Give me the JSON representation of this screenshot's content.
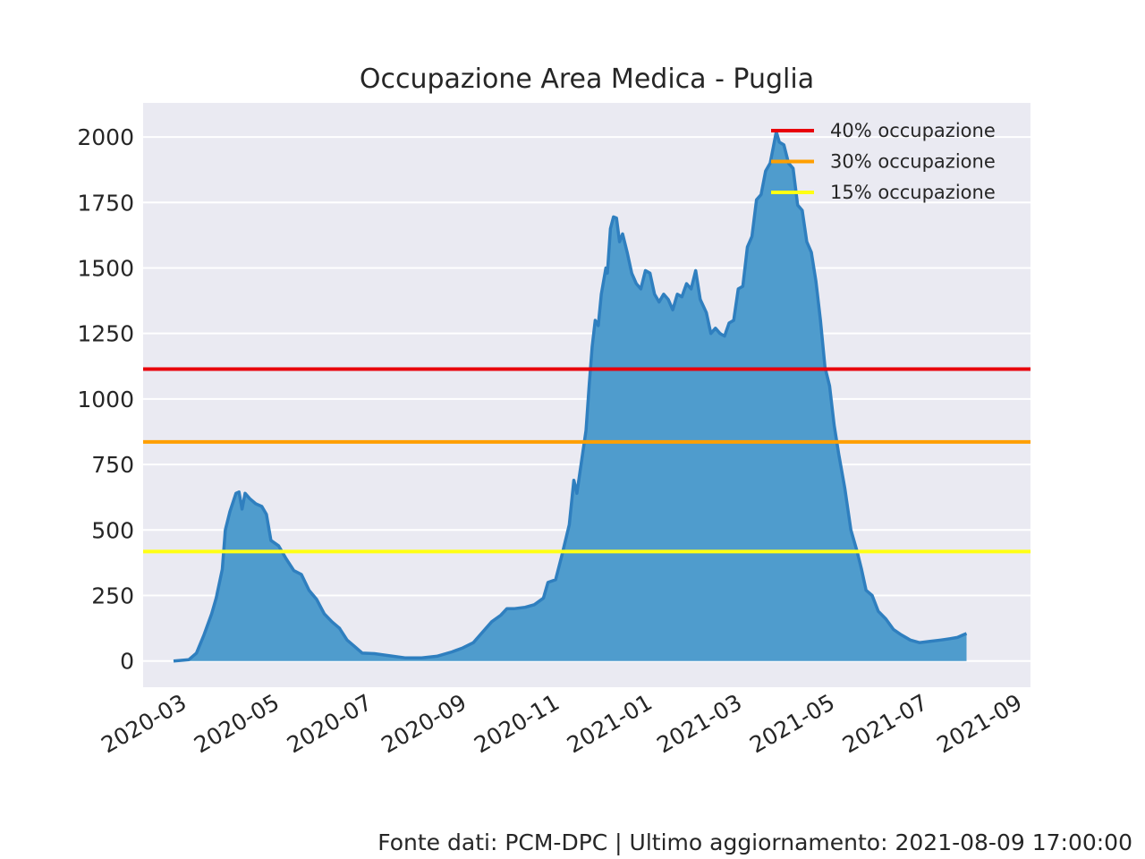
{
  "chart_data": {
    "type": "area",
    "title": "Occupazione Area Medica - Puglia",
    "xlabel": "",
    "ylabel": "",
    "x_range": [
      "2020-02-04",
      "2021-09-09"
    ],
    "ylim": [
      -100,
      2130
    ],
    "yticks": [
      0,
      250,
      500,
      750,
      1000,
      1250,
      1500,
      1750,
      2000
    ],
    "xticks": [
      "2020-03",
      "2020-05",
      "2020-07",
      "2020-09",
      "2020-11",
      "2021-01",
      "2021-03",
      "2021-05",
      "2021-07",
      "2021-09"
    ],
    "grid": true,
    "legend_position": "top-right",
    "thresholds": [
      {
        "name": "40% occupazione",
        "value": 1114,
        "color": "#e8000b"
      },
      {
        "name": "30% occupazione",
        "value": 836,
        "color": "#ff9f00"
      },
      {
        "name": "15% occupazione",
        "value": 418,
        "color": "#ffff14"
      }
    ],
    "series": [
      {
        "color": "#2f7fbf",
        "fill": "#4f9ccd",
        "points": [
          [
            "2020-02-24",
            0
          ],
          [
            "2020-03-05",
            5
          ],
          [
            "2020-03-10",
            30
          ],
          [
            "2020-03-15",
            100
          ],
          [
            "2020-03-20",
            180
          ],
          [
            "2020-03-23",
            240
          ],
          [
            "2020-03-27",
            350
          ],
          [
            "2020-03-29",
            500
          ],
          [
            "2020-04-01",
            570
          ],
          [
            "2020-04-05",
            640
          ],
          [
            "2020-04-07",
            645
          ],
          [
            "2020-04-09",
            580
          ],
          [
            "2020-04-11",
            640
          ],
          [
            "2020-04-14",
            620
          ],
          [
            "2020-04-18",
            600
          ],
          [
            "2020-04-22",
            590
          ],
          [
            "2020-04-25",
            560
          ],
          [
            "2020-04-28",
            460
          ],
          [
            "2020-05-03",
            440
          ],
          [
            "2020-05-08",
            390
          ],
          [
            "2020-05-13",
            345
          ],
          [
            "2020-05-18",
            330
          ],
          [
            "2020-05-23",
            270
          ],
          [
            "2020-05-28",
            235
          ],
          [
            "2020-06-02",
            180
          ],
          [
            "2020-06-07",
            150
          ],
          [
            "2020-06-12",
            125
          ],
          [
            "2020-06-17",
            80
          ],
          [
            "2020-06-22",
            55
          ],
          [
            "2020-06-27",
            30
          ],
          [
            "2020-07-05",
            28
          ],
          [
            "2020-07-15",
            20
          ],
          [
            "2020-07-25",
            12
          ],
          [
            "2020-08-05",
            12
          ],
          [
            "2020-08-15",
            18
          ],
          [
            "2020-08-25",
            35
          ],
          [
            "2020-09-01",
            50
          ],
          [
            "2020-09-08",
            70
          ],
          [
            "2020-09-14",
            110
          ],
          [
            "2020-09-20",
            150
          ],
          [
            "2020-09-26",
            175
          ],
          [
            "2020-09-30",
            200
          ],
          [
            "2020-10-05",
            200
          ],
          [
            "2020-10-12",
            205
          ],
          [
            "2020-10-18",
            215
          ],
          [
            "2020-10-24",
            240
          ],
          [
            "2020-10-27",
            300
          ],
          [
            "2020-11-01",
            310
          ],
          [
            "2020-11-05",
            400
          ],
          [
            "2020-11-10",
            520
          ],
          [
            "2020-11-13",
            690
          ],
          [
            "2020-11-15",
            640
          ],
          [
            "2020-11-18",
            760
          ],
          [
            "2020-11-21",
            880
          ],
          [
            "2020-11-23",
            1050
          ],
          [
            "2020-11-25",
            1200
          ],
          [
            "2020-11-27",
            1300
          ],
          [
            "2020-11-29",
            1280
          ],
          [
            "2020-12-01",
            1400
          ],
          [
            "2020-12-04",
            1500
          ],
          [
            "2020-12-05",
            1480
          ],
          [
            "2020-12-07",
            1650
          ],
          [
            "2020-12-09",
            1695
          ],
          [
            "2020-12-11",
            1690
          ],
          [
            "2020-12-13",
            1600
          ],
          [
            "2020-12-15",
            1630
          ],
          [
            "2020-12-18",
            1560
          ],
          [
            "2020-12-21",
            1480
          ],
          [
            "2020-12-24",
            1440
          ],
          [
            "2020-12-27",
            1420
          ],
          [
            "2020-12-30",
            1490
          ],
          [
            "2021-01-02",
            1480
          ],
          [
            "2021-01-05",
            1400
          ],
          [
            "2021-01-08",
            1370
          ],
          [
            "2021-01-11",
            1400
          ],
          [
            "2021-01-14",
            1380
          ],
          [
            "2021-01-17",
            1340
          ],
          [
            "2021-01-20",
            1400
          ],
          [
            "2021-01-23",
            1390
          ],
          [
            "2021-01-26",
            1440
          ],
          [
            "2021-01-29",
            1420
          ],
          [
            "2021-02-01",
            1490
          ],
          [
            "2021-02-04",
            1380
          ],
          [
            "2021-02-08",
            1330
          ],
          [
            "2021-02-11",
            1250
          ],
          [
            "2021-02-14",
            1270
          ],
          [
            "2021-02-17",
            1250
          ],
          [
            "2021-02-20",
            1240
          ],
          [
            "2021-02-23",
            1290
          ],
          [
            "2021-02-26",
            1300
          ],
          [
            "2021-03-01",
            1420
          ],
          [
            "2021-03-04",
            1430
          ],
          [
            "2021-03-07",
            1580
          ],
          [
            "2021-03-10",
            1620
          ],
          [
            "2021-03-13",
            1760
          ],
          [
            "2021-03-16",
            1780
          ],
          [
            "2021-03-19",
            1870
          ],
          [
            "2021-03-22",
            1900
          ],
          [
            "2021-03-24",
            1960
          ],
          [
            "2021-03-26",
            2020
          ],
          [
            "2021-03-28",
            1980
          ],
          [
            "2021-03-31",
            1970
          ],
          [
            "2021-04-03",
            1900
          ],
          [
            "2021-04-06",
            1880
          ],
          [
            "2021-04-09",
            1740
          ],
          [
            "2021-04-12",
            1720
          ],
          [
            "2021-04-15",
            1600
          ],
          [
            "2021-04-18",
            1560
          ],
          [
            "2021-04-21",
            1450
          ],
          [
            "2021-04-24",
            1300
          ],
          [
            "2021-04-27",
            1120
          ],
          [
            "2021-04-30",
            1050
          ],
          [
            "2021-05-03",
            900
          ],
          [
            "2021-05-06",
            790
          ],
          [
            "2021-05-10",
            660
          ],
          [
            "2021-05-14",
            500
          ],
          [
            "2021-05-18",
            420
          ],
          [
            "2021-05-21",
            350
          ],
          [
            "2021-05-24",
            270
          ],
          [
            "2021-05-28",
            250
          ],
          [
            "2021-06-01",
            190
          ],
          [
            "2021-06-06",
            160
          ],
          [
            "2021-06-11",
            120
          ],
          [
            "2021-06-16",
            100
          ],
          [
            "2021-06-22",
            80
          ],
          [
            "2021-06-28",
            70
          ],
          [
            "2021-07-05",
            75
          ],
          [
            "2021-07-12",
            80
          ],
          [
            "2021-07-18",
            85
          ],
          [
            "2021-07-23",
            90
          ],
          [
            "2021-07-27",
            100
          ],
          [
            "2021-07-29",
            105
          ]
        ]
      }
    ]
  },
  "footer": "Fonte dati: PCM-DPC | Ultimo aggiornamento: 2021-08-09 17:00:00"
}
